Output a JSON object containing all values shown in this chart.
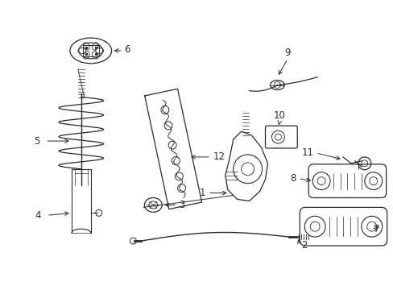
{
  "bg_color": "#ffffff",
  "lc": "#2a2a2a",
  "figsize": [
    4.89,
    3.6
  ],
  "dpi": 100,
  "label_fs": 8.5
}
